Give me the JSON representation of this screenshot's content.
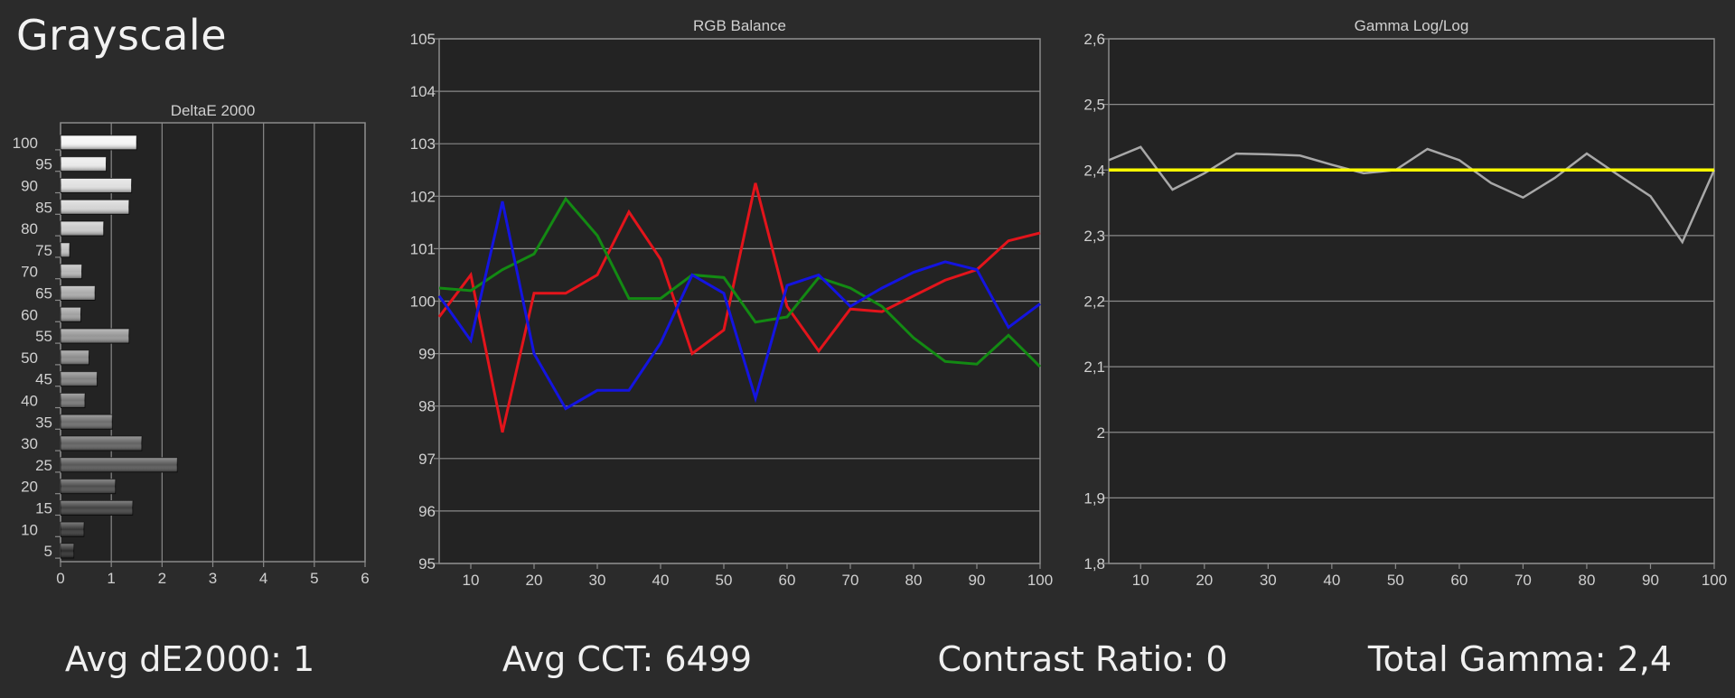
{
  "header": {
    "title": "Grayscale"
  },
  "stats": {
    "avg_de_label": "Avg dE2000: ",
    "avg_de_value": "1",
    "avg_cct_label": "Avg CCT: ",
    "avg_cct_value": "6499",
    "contrast_label": "Contrast Ratio: ",
    "contrast_value": "0",
    "gamma_label": "Total Gamma: ",
    "gamma_value": "2,4"
  },
  "chart_data": [
    {
      "type": "bar",
      "orientation": "horizontal",
      "title": "DeltaE 2000",
      "categories": [
        "100",
        "95",
        "90",
        "85",
        "80",
        "75",
        "70",
        "65",
        "60",
        "55",
        "50",
        "45",
        "40",
        "35",
        "30",
        "25",
        "20",
        "15",
        "10",
        "5"
      ],
      "values": [
        1.5,
        0.9,
        1.4,
        1.35,
        0.85,
        0.18,
        0.42,
        0.68,
        0.4,
        1.35,
        0.56,
        0.72,
        0.48,
        1.02,
        1.6,
        2.3,
        1.08,
        1.42,
        0.46,
        0.26
      ],
      "xlim": [
        0,
        6
      ],
      "xticks": [
        "0",
        "1",
        "2",
        "3",
        "4",
        "5",
        "6"
      ],
      "yticks_shown": [
        "100",
        "95",
        "90",
        "85",
        "80",
        "75",
        "70",
        "65",
        "60",
        "55",
        "50",
        "45",
        "40",
        "35",
        "30",
        "25",
        "20",
        "15",
        "10",
        "5"
      ],
      "grid": true
    },
    {
      "type": "line",
      "title": "RGB Balance",
      "x": [
        5,
        10,
        15,
        20,
        25,
        30,
        35,
        40,
        45,
        50,
        55,
        60,
        65,
        70,
        75,
        80,
        85,
        90,
        95,
        100
      ],
      "ylim": [
        95,
        105
      ],
      "xticks": [
        "10",
        "20",
        "30",
        "40",
        "50",
        "60",
        "70",
        "80",
        "90",
        "100"
      ],
      "yticks": [
        "95",
        "96",
        "97",
        "98",
        "99",
        "100",
        "101",
        "102",
        "103",
        "104",
        "105"
      ],
      "grid": true,
      "colors": {
        "red": "#e3141b",
        "green": "#138a13",
        "blue": "#1414e0"
      },
      "series": [
        {
          "color": "red",
          "values": [
            99.7,
            100.5,
            97.5,
            100.15,
            100.15,
            100.5,
            101.7,
            100.8,
            99.0,
            99.45,
            102.25,
            99.9,
            99.05,
            99.85,
            99.8,
            100.1,
            100.4,
            100.6,
            101.15,
            101.3
          ]
        },
        {
          "color": "green",
          "values": [
            100.25,
            100.2,
            100.6,
            100.9,
            101.95,
            101.25,
            100.05,
            100.05,
            100.5,
            100.45,
            99.6,
            99.7,
            100.45,
            100.25,
            99.9,
            99.3,
            98.85,
            98.8,
            99.35,
            98.75
          ]
        },
        {
          "color": "blue",
          "values": [
            100.1,
            99.25,
            101.9,
            99.0,
            97.95,
            98.3,
            98.3,
            99.2,
            100.5,
            100.15,
            98.15,
            100.3,
            100.5,
            99.9,
            100.25,
            100.55,
            100.75,
            100.6,
            99.5,
            99.95
          ]
        }
      ]
    },
    {
      "type": "line",
      "title": "Gamma Log/Log",
      "x": [
        5,
        10,
        15,
        20,
        25,
        30,
        35,
        40,
        45,
        50,
        55,
        60,
        65,
        70,
        75,
        80,
        85,
        90,
        95,
        100
      ],
      "ylim": [
        1.8,
        2.6
      ],
      "xticks": [
        "10",
        "20",
        "30",
        "40",
        "50",
        "60",
        "70",
        "80",
        "90",
        "100"
      ],
      "yticks": [
        "1,8",
        "1,9",
        "2",
        "2,1",
        "2,2",
        "2,3",
        "2,4",
        "2,5",
        "2,6"
      ],
      "grid": true,
      "colors": {
        "measured": "#a8a8a8",
        "target": "#ffff00"
      },
      "target_value": 2.4,
      "series": [
        {
          "color": "measured",
          "values": [
            2.415,
            2.435,
            2.37,
            2.395,
            2.425,
            2.424,
            2.422,
            2.408,
            2.395,
            2.4,
            2.432,
            2.415,
            2.38,
            2.358,
            2.388,
            2.425,
            2.392,
            2.36,
            2.29,
            2.4
          ]
        }
      ]
    }
  ]
}
